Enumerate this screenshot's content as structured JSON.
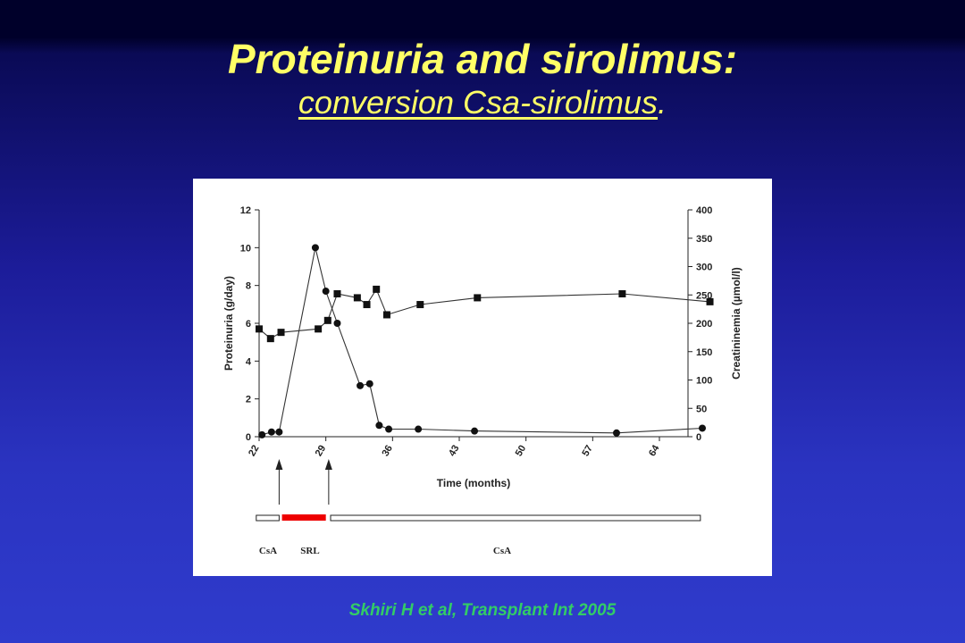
{
  "slide": {
    "title": "Proteinuria and sirolimus:",
    "subtitle_main": "conversion Csa-sirolimus",
    "subtitle_tail": ".",
    "citation": "Skhiri H et al,  Transplant Int 2005"
  },
  "colors": {
    "title": "#ffff66",
    "citation": "#33cc66",
    "srl_bar": "#ee0000"
  },
  "chart_data": {
    "type": "line",
    "xlabel": "Time (months)",
    "ylabel_left": "Proteinuria (g/day)",
    "ylabel_right": "Creatininemia (µmol/l)",
    "xlim": [
      22,
      67
    ],
    "ylim_left": [
      0,
      12
    ],
    "ylim_right": [
      0,
      400
    ],
    "x_ticks": [
      "22",
      "29",
      "36",
      "43",
      "50",
      "57",
      "64"
    ],
    "y_left_ticks": [
      "0",
      "2",
      "4",
      "6",
      "8",
      "10",
      "12"
    ],
    "y_right_ticks": [
      "0",
      "50",
      "100",
      "150",
      "200",
      "250",
      "300",
      "350",
      "400"
    ],
    "grid": false,
    "series": [
      {
        "axis": "left",
        "marker": "circle",
        "points": [
          [
            22.3,
            0.1
          ],
          [
            23.3,
            0.25
          ],
          [
            24.1,
            0.25
          ],
          [
            27.9,
            10.0
          ],
          [
            29.0,
            7.7
          ],
          [
            30.2,
            6.0
          ],
          [
            32.6,
            2.7
          ],
          [
            33.6,
            2.8
          ],
          [
            34.6,
            0.6
          ],
          [
            35.6,
            0.4
          ],
          [
            38.7,
            0.4
          ],
          [
            44.6,
            0.3
          ],
          [
            59.5,
            0.2
          ],
          [
            68.5,
            0.45
          ]
        ]
      },
      {
        "axis": "right",
        "marker": "square",
        "points": [
          [
            22.0,
            190
          ],
          [
            23.2,
            173
          ],
          [
            24.3,
            184
          ],
          [
            28.2,
            190
          ],
          [
            29.2,
            205
          ],
          [
            30.2,
            252
          ],
          [
            32.3,
            245
          ],
          [
            33.3,
            233
          ],
          [
            34.3,
            260
          ],
          [
            35.4,
            215
          ],
          [
            38.9,
            233
          ],
          [
            44.9,
            245
          ],
          [
            60.1,
            252
          ],
          [
            69.3,
            238
          ]
        ]
      }
    ],
    "arrows_at_x": [
      24.1,
      29.3
    ],
    "treatment_bars": [
      {
        "label": "CsA",
        "start": 21.7,
        "end": 24.1,
        "style": "open"
      },
      {
        "label": "SRL",
        "start": 24.4,
        "end": 29.0,
        "style": "filled"
      },
      {
        "label": "CsA",
        "start": 29.5,
        "end": 68.3,
        "style": "open"
      }
    ]
  }
}
